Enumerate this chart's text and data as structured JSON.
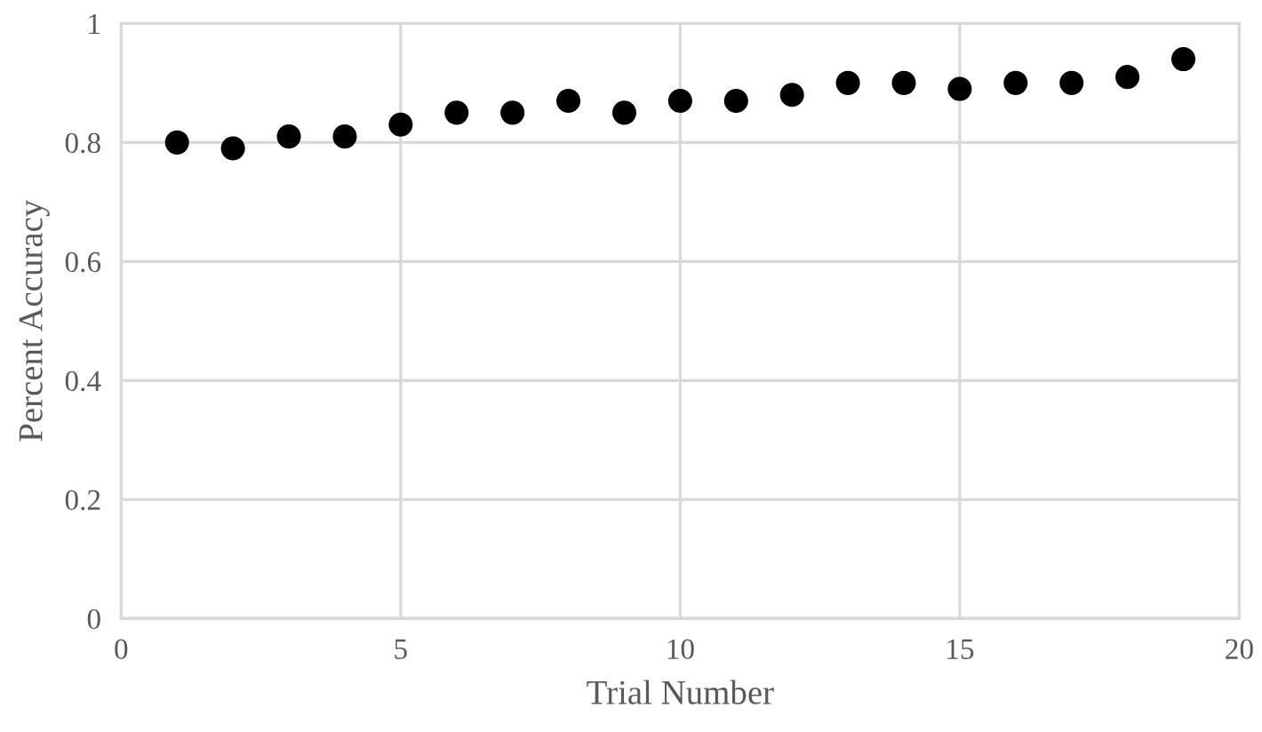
{
  "chart_data": {
    "type": "scatter",
    "xlabel": "Trial Number",
    "ylabel": "Percent Accuracy",
    "x": [
      1,
      2,
      3,
      4,
      5,
      6,
      7,
      8,
      9,
      10,
      11,
      12,
      13,
      14,
      15,
      16,
      17,
      18,
      19
    ],
    "series": [
      {
        "color": "#000000",
        "values": [
          0.8,
          0.79,
          0.81,
          0.81,
          0.83,
          0.85,
          0.85,
          0.87,
          0.85,
          0.87,
          0.87,
          0.88,
          0.9,
          0.9,
          0.89,
          0.9,
          0.9,
          0.91,
          0.94
        ]
      }
    ],
    "xlim": [
      0,
      20
    ],
    "xticks": [
      0,
      5,
      10,
      15,
      20
    ],
    "ylim": [
      0,
      1
    ],
    "yticks": [
      0,
      0.2,
      0.4,
      0.6,
      0.8,
      1
    ],
    "grid": true,
    "marker": "circle"
  }
}
